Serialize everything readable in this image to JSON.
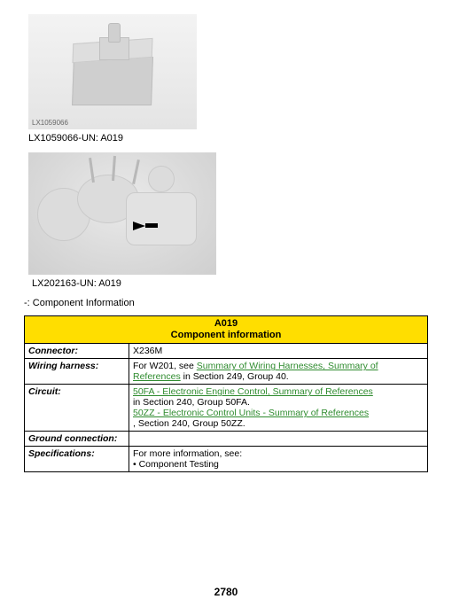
{
  "figure1": {
    "internal_label": "LX1059066",
    "caption": "LX1059066-UN: A019"
  },
  "figure2": {
    "caption": "LX202163-UN: A019"
  },
  "dash_text": "-: Component Information",
  "table": {
    "header_code": "A019",
    "header_title": "Component information",
    "rows": {
      "connector": {
        "label": "Connector:",
        "value": "X236M"
      },
      "wiring": {
        "label": "Wiring harness:",
        "prefix": "For W201, see ",
        "link1": "Summary of Wiring Harnesses, Summary of References",
        "suffix": "in Section 249, Group 40."
      },
      "circuit": {
        "label": "Circuit:",
        "link1": "50FA - Electronic Engine Control, Summary of References",
        "line1_suffix": "in Section 240, Group 50FA.",
        "link2": "50ZZ - Electronic Control Units - Summary of References",
        "line2_suffix": ", Section 240, Group 50ZZ."
      },
      "ground": {
        "label": "Ground connection:",
        "value": ""
      },
      "spec": {
        "label": "Specifications:",
        "line1": "For more information, see:",
        "line2": "• Component Testing"
      }
    }
  },
  "page_number": "2780",
  "colors": {
    "header_bg": "#ffde00",
    "link": "#2e8b2e",
    "border": "#000000",
    "page_bg": "#ffffff"
  }
}
